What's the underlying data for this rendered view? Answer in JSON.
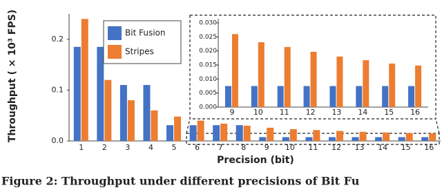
{
  "chart_data": [
    {
      "type": "bar",
      "xlabel": "Precision (bit)",
      "ylabel": "Throughput ( × 10³ FPS)",
      "categories": [
        "1",
        "2",
        "3",
        "4",
        "5",
        "6",
        "7",
        "8",
        "9",
        "10",
        "11",
        "12",
        "13",
        "14",
        "15",
        "16"
      ],
      "series": [
        {
          "name": "Bit Fusion",
          "color": "#4472c4",
          "values": [
            0.185,
            0.185,
            0.11,
            0.11,
            0.031,
            0.031,
            0.031,
            0.031,
            0.0075,
            0.0075,
            0.0075,
            0.0075,
            0.0075,
            0.0075,
            0.0075,
            0.0075
          ]
        },
        {
          "name": "Stripes",
          "color": "#ed7d31",
          "values": [
            0.24,
            0.12,
            0.08,
            0.06,
            0.048,
            0.04,
            0.034,
            0.03,
            0.026,
            0.0231,
            0.0214,
            0.0197,
            0.018,
            0.0167,
            0.0155,
            0.0148
          ]
        }
      ],
      "ylim": [
        0,
        0.25
      ],
      "yticks": [
        {
          "value": 0,
          "label": "0.0"
        },
        0.1,
        0.2
      ],
      "legend": "upper-left"
    },
    {
      "type": "bar",
      "categories": [
        "9",
        "10",
        "11",
        "12",
        "13",
        "14",
        "15",
        "16"
      ],
      "series": [
        {
          "name": "Bit Fusion",
          "color": "#4472c4",
          "values": [
            0.0075,
            0.0075,
            0.0075,
            0.0075,
            0.0075,
            0.0075,
            0.0075,
            0.0075
          ]
        },
        {
          "name": "Stripes",
          "color": "#ed7d31",
          "values": [
            0.026,
            0.0231,
            0.0214,
            0.0197,
            0.018,
            0.0167,
            0.0155,
            0.0148
          ]
        }
      ],
      "ylim": [
        0,
        0.0315
      ],
      "yticks": [
        {
          "value": 0,
          "label": "0.000"
        },
        {
          "value": 0.005,
          "label": "0.005"
        },
        {
          "value": 0.01,
          "label": "0.010"
        },
        {
          "value": 0.015,
          "label": "0.015"
        },
        {
          "value": 0.02,
          "label": "0.020"
        },
        {
          "value": 0.025,
          "label": "0.025"
        },
        {
          "value": 0.03,
          "label": "0.030"
        }
      ]
    }
  ],
  "caption": "Figure 2: Throughput under different precisions of Bit Fu"
}
